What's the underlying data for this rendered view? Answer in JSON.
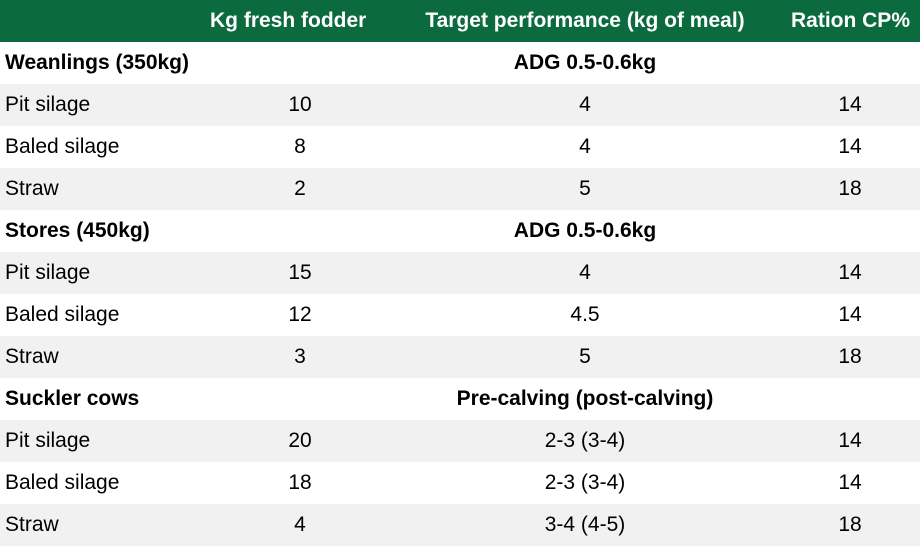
{
  "header": {
    "label": "",
    "fodder": "Kg fresh fodder",
    "target": "Target performance (kg of meal)",
    "cp": "Ration CP%"
  },
  "colors": {
    "header_background": "#0b6a3e",
    "header_text": "#ffffff",
    "shaded_row": "#f1f1f1"
  },
  "groups": [
    {
      "label": "Weanlings (350kg)",
      "target": "ADG 0.5-0.6kg",
      "rows": [
        {
          "label": "Pit silage",
          "fodder": "10",
          "target": "4",
          "cp": "14"
        },
        {
          "label": "Baled silage",
          "fodder": "8",
          "target": "4",
          "cp": "14"
        },
        {
          "label": "Straw",
          "fodder": "2",
          "target": "5",
          "cp": "18"
        }
      ]
    },
    {
      "label": "Stores (450kg)",
      "target": "ADG 0.5-0.6kg",
      "rows": [
        {
          "label": "Pit silage",
          "fodder": "15",
          "target": "4",
          "cp": "14"
        },
        {
          "label": "Baled silage",
          "fodder": "12",
          "target": "4.5",
          "cp": "14"
        },
        {
          "label": "Straw",
          "fodder": "3",
          "target": "5",
          "cp": "18"
        }
      ]
    },
    {
      "label": "Suckler cows",
      "target": "Pre-calving (post-calving)",
      "rows": [
        {
          "label": "Pit silage",
          "fodder": "20",
          "target": "2-3 (3-4)",
          "cp": "14"
        },
        {
          "label": "Baled silage",
          "fodder": "18",
          "target": "2-3 (3-4)",
          "cp": "14"
        },
        {
          "label": "Straw",
          "fodder": "4",
          "target": "3-4 (4-5)",
          "cp": "18"
        }
      ]
    }
  ]
}
